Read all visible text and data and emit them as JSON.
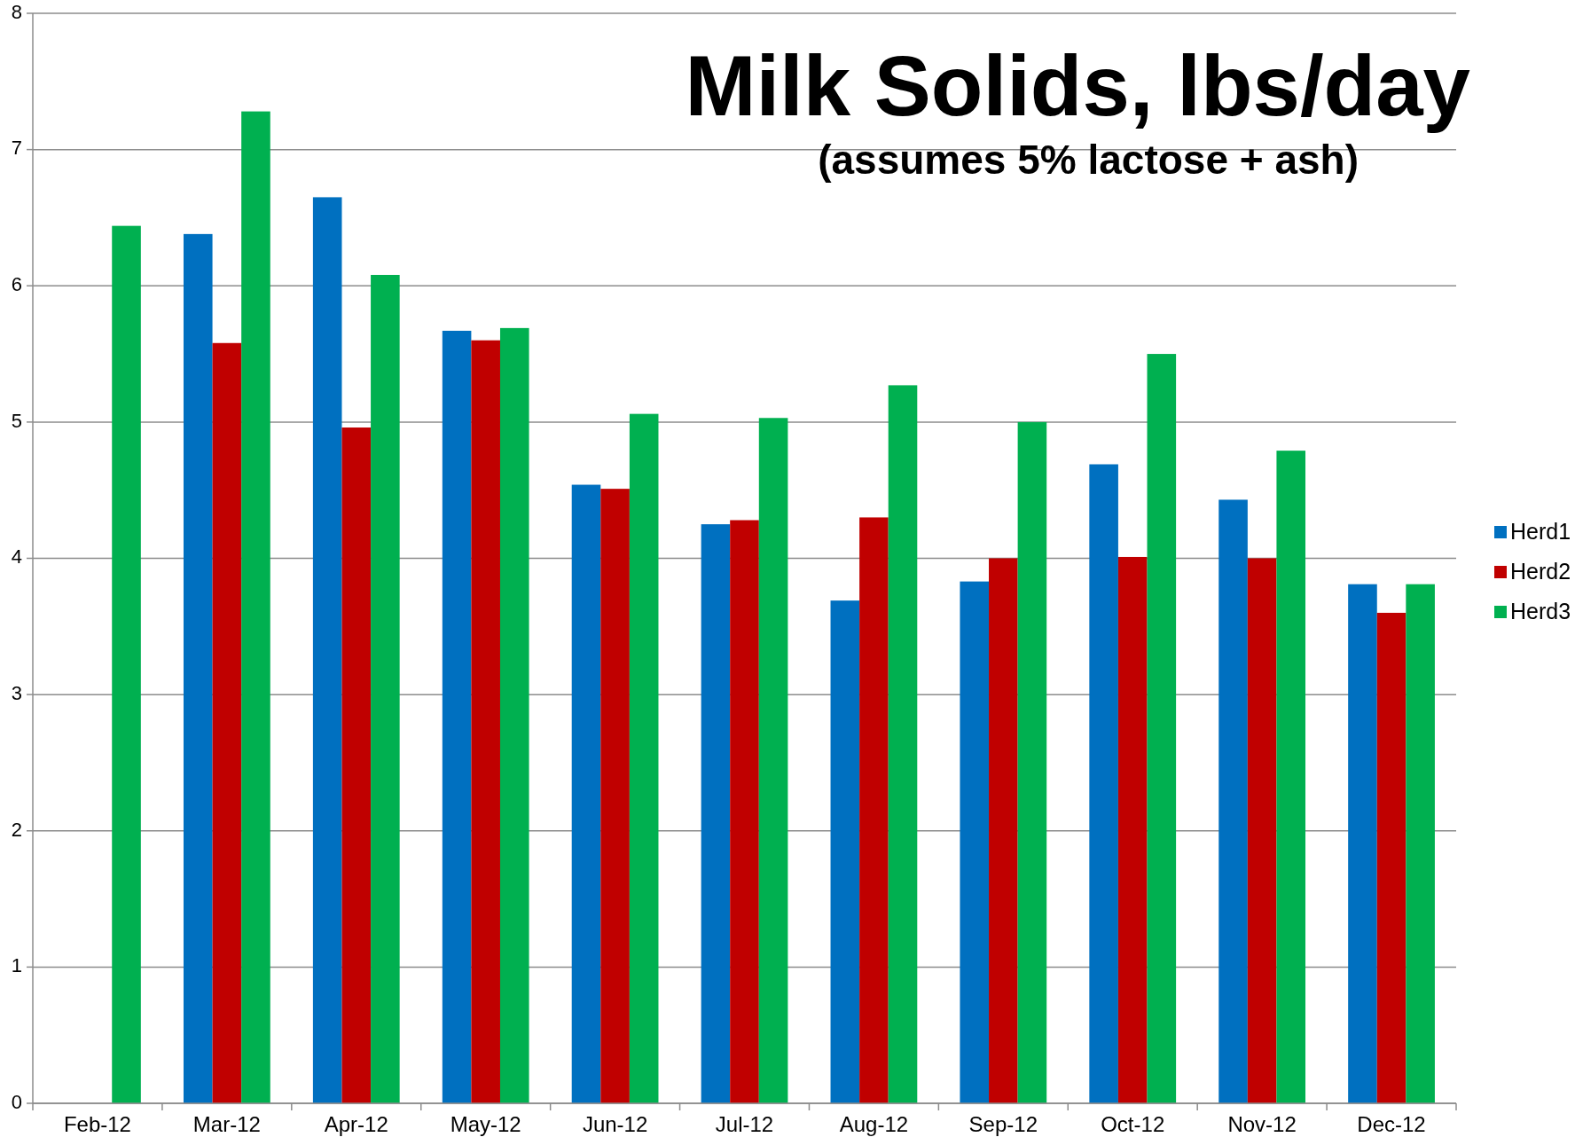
{
  "chart_data": {
    "type": "bar",
    "title": "Milk Solids, lbs/day",
    "subtitle": "(assumes 5% lactose + ash)",
    "categories": [
      "Feb-12",
      "Mar-12",
      "Apr-12",
      "May-12",
      "Jun-12",
      "Jul-12",
      "Aug-12",
      "Sep-12",
      "Oct-12",
      "Nov-12",
      "Dec-12"
    ],
    "series": [
      {
        "name": "Herd1",
        "color": "#0070c0",
        "values": [
          null,
          6.38,
          6.65,
          5.67,
          4.54,
          4.25,
          3.69,
          3.83,
          4.69,
          4.43,
          3.81
        ]
      },
      {
        "name": "Herd2",
        "color": "#c00000",
        "values": [
          null,
          5.58,
          4.96,
          5.6,
          4.51,
          4.28,
          4.3,
          4.0,
          4.01,
          4.0,
          3.6
        ]
      },
      {
        "name": "Herd3",
        "color": "#00b050",
        "values": [
          6.44,
          7.28,
          6.08,
          5.69,
          5.06,
          5.03,
          5.27,
          5.0,
          5.5,
          4.79,
          3.81
        ]
      }
    ],
    "ylim": [
      0,
      8
    ],
    "yticks": [
      0,
      1,
      2,
      3,
      4,
      5,
      6,
      7,
      8
    ],
    "grid": "y",
    "legend": "right"
  }
}
